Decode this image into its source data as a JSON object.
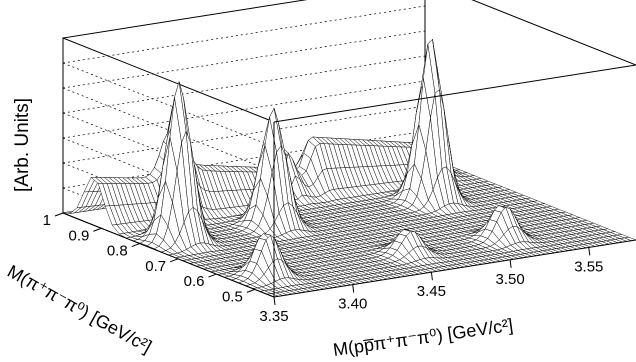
{
  "chart_data": {
    "type": "surface3d",
    "title": "",
    "zlabel": "[Arb. Units]",
    "y_axis": {
      "label": "M(π⁺π⁻π⁰) [GeV/c²]",
      "ticks": [
        "0.5",
        "0.6",
        "0.7",
        "0.8",
        "0.9",
        "1"
      ],
      "range": [
        0.45,
        1.0
      ]
    },
    "x_axis": {
      "label": "M(pp̅π⁺π⁻π⁰) [GeV/c²]",
      "ticks": [
        "3.35",
        "3.40",
        "3.45",
        "3.50",
        "3.55"
      ],
      "range": [
        3.35,
        3.58
      ]
    },
    "grid": true,
    "peaks": [
      {
        "x": 3.37,
        "y": 0.78,
        "height": 0.97
      },
      {
        "x": 3.43,
        "y": 0.78,
        "height": 0.72
      },
      {
        "x": 3.53,
        "y": 0.78,
        "height": 1.0
      },
      {
        "x": 3.37,
        "y": 0.55,
        "height": 0.28
      },
      {
        "x": 3.46,
        "y": 0.55,
        "height": 0.16
      },
      {
        "x": 3.52,
        "y": 0.55,
        "height": 0.22
      }
    ],
    "ridges": [
      {
        "x_from": 3.3,
        "x_to": 3.4,
        "y": 0.92,
        "height": 0.38
      },
      {
        "x_from": 3.4,
        "x_to": 3.47,
        "y": 0.92,
        "height": 0.3
      },
      {
        "x_from": 3.49,
        "x_to": 3.56,
        "y": 0.92,
        "height": 0.33
      }
    ]
  }
}
